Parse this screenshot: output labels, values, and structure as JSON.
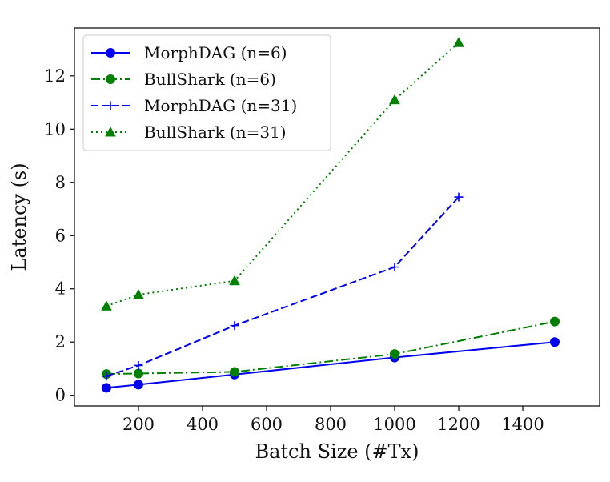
{
  "chart_data": {
    "type": "line",
    "title": "",
    "xlabel": "Batch Size (#Tx)",
    "ylabel": "Latency (s)",
    "xlim": [
      0,
      1640
    ],
    "ylim": [
      -0.4,
      13.8
    ],
    "xticks": [
      200,
      400,
      600,
      800,
      1000,
      1200,
      1400
    ],
    "yticks": [
      0,
      2,
      4,
      6,
      8,
      10,
      12
    ],
    "grid": false,
    "legend_position": "top-left",
    "series": [
      {
        "name": "MorphDAG (n=6)",
        "color": "#0000ee",
        "line_style": "solid",
        "marker": "circle",
        "x": [
          100,
          200,
          500,
          1000,
          1500
        ],
        "y": [
          0.28,
          0.4,
          0.78,
          1.42,
          2.0
        ]
      },
      {
        "name": "BullShark (n=6)",
        "color": "#008000",
        "line_style": "dashdot",
        "marker": "circle",
        "x": [
          100,
          200,
          500,
          1000,
          1500
        ],
        "y": [
          0.8,
          0.82,
          0.88,
          1.55,
          2.77
        ]
      },
      {
        "name": "MorphDAG (n=31)",
        "color": "#0000ee",
        "line_style": "dashed",
        "marker": "plus",
        "x": [
          100,
          200,
          500,
          1000,
          1200
        ],
        "y": [
          0.72,
          1.12,
          2.62,
          4.82,
          7.45
        ]
      },
      {
        "name": "BullShark (n=31)",
        "color": "#008000",
        "line_style": "dotted",
        "marker": "triangle",
        "x": [
          100,
          200,
          500,
          1000,
          1200
        ],
        "y": [
          3.35,
          3.78,
          4.3,
          11.1,
          13.25
        ]
      }
    ]
  }
}
